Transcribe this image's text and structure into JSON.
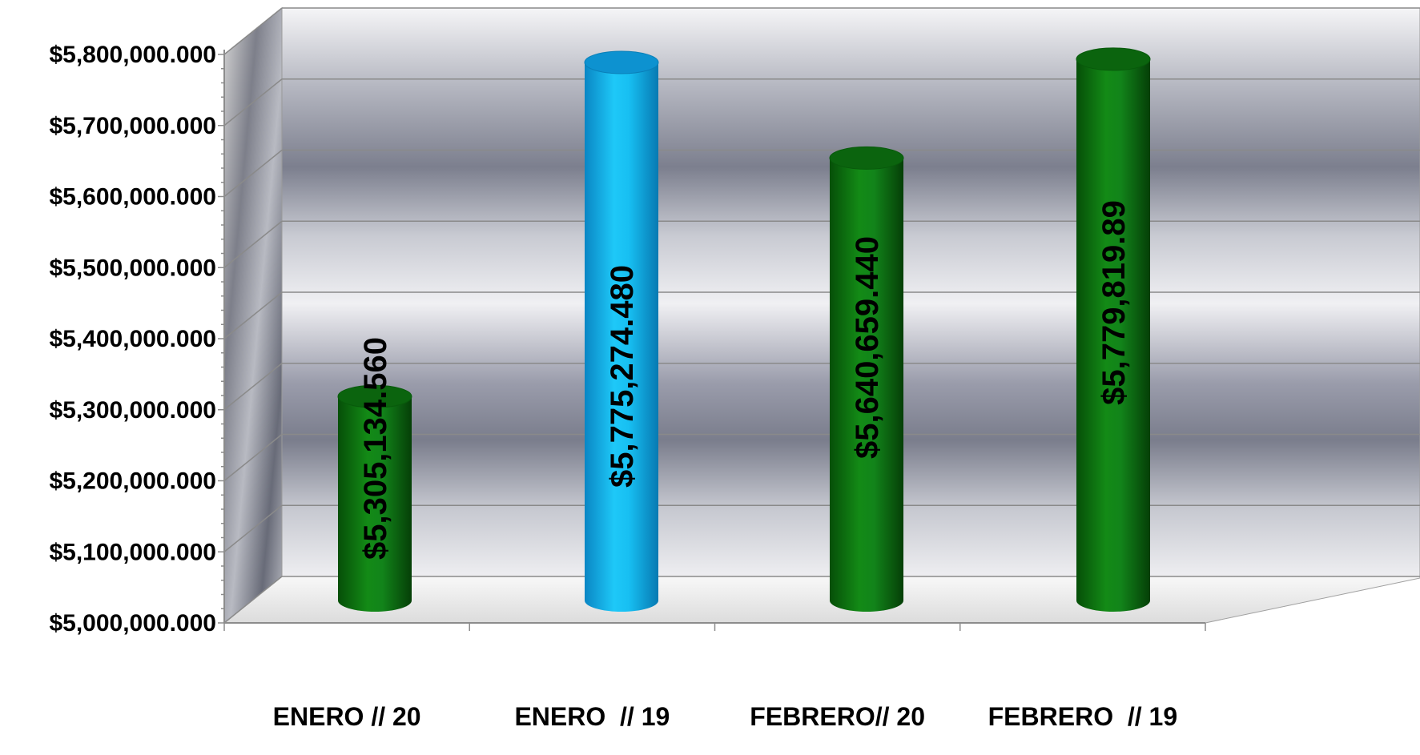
{
  "chart_data": {
    "type": "bar",
    "style": "3d-cylinder",
    "categories": [
      "ENERO // 20",
      "ENERO  // 19",
      "FEBRERO// 20",
      "FEBRERO  // 19"
    ],
    "values": [
      5305134.56,
      5775274.48,
      5640659.44,
      5779819.89
    ],
    "data_labels": [
      "$5,305,134.560",
      "$5,775,274.480",
      "$5,640,659.440",
      "$5,779,819.89"
    ],
    "bar_colors": [
      "#0f7a12",
      "#1ab8ec",
      "#0f7a12",
      "#0f7a12"
    ],
    "ylim": [
      5000000,
      5800000
    ],
    "yticks": [
      5000000,
      5100000,
      5200000,
      5300000,
      5400000,
      5500000,
      5600000,
      5700000,
      5800000
    ],
    "ytick_labels": [
      "$5,000,000.000",
      "$5,100,000.000",
      "$5,200,000.000",
      "$5,300,000.000",
      "$5,400,000.000",
      "$5,500,000.000",
      "$5,600,000.000",
      "$5,700,000.000",
      "$5,800,000.000"
    ],
    "title": "",
    "xlabel": "",
    "ylabel": "",
    "grid": true,
    "legend": "none"
  }
}
